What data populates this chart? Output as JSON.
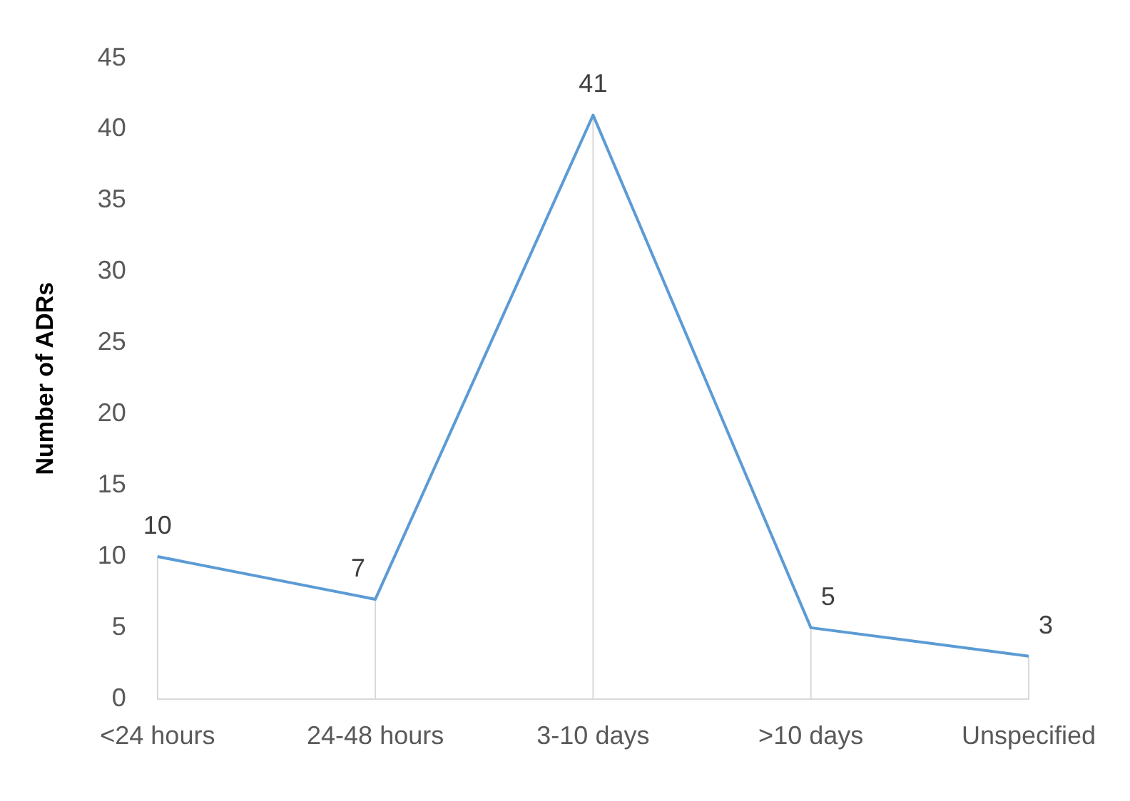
{
  "chart_data": {
    "type": "line",
    "ylabel": "Number of ADRs",
    "categories": [
      "<24 hours",
      "24-48 hours",
      "3-10 days",
      ">10 days",
      "Unspecified"
    ],
    "series": [
      {
        "color": "#5b9bd5",
        "values": [
          10,
          7,
          41,
          5,
          3
        ]
      }
    ],
    "ylim": [
      0,
      45
    ],
    "yticks": [
      0,
      5,
      10,
      15,
      20,
      25,
      30,
      35,
      40,
      45
    ],
    "grid": "x",
    "legend": false,
    "data_labels": true,
    "marker": "none",
    "line_style": "solid"
  }
}
